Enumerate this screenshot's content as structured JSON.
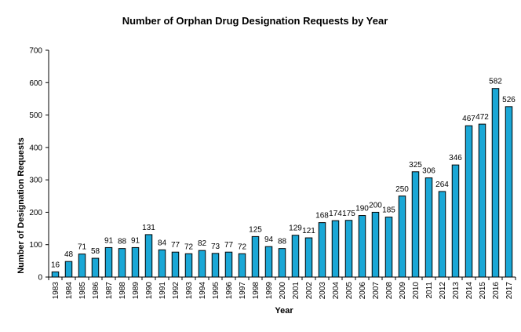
{
  "chart_data": {
    "type": "bar",
    "title": "Number of Orphan Drug Designation Requests by Year",
    "xlabel": "Year",
    "ylabel": "Number of Designation Requests",
    "ylim": [
      0,
      700
    ],
    "yticks": [
      0,
      100,
      200,
      300,
      400,
      500,
      600,
      700
    ],
    "grid": false,
    "legend": "none",
    "bar_color": "#1aa7d6",
    "categories": [
      "1983",
      "1984",
      "1985",
      "1986",
      "1987",
      "1988",
      "1989",
      "1990",
      "1991",
      "1992",
      "1993",
      "1994",
      "1995",
      "1996",
      "1997",
      "1998",
      "1999",
      "2000",
      "2001",
      "2002",
      "2003",
      "2004",
      "2005",
      "2006",
      "2007",
      "2008",
      "2009",
      "2010",
      "2011",
      "2012",
      "2013",
      "2014",
      "2015",
      "2016",
      "2017"
    ],
    "values": [
      16,
      48,
      71,
      58,
      91,
      88,
      91,
      131,
      84,
      77,
      72,
      82,
      73,
      77,
      72,
      125,
      94,
      88,
      129,
      121,
      168,
      174,
      175,
      190,
      200,
      185,
      250,
      325,
      306,
      264,
      346,
      467,
      472,
      582,
      526
    ]
  }
}
